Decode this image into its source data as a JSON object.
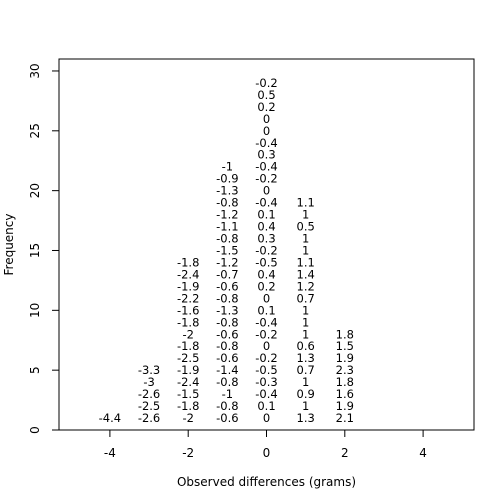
{
  "chart_data": {
    "type": "scatter",
    "subtype": "stacked-value-dotplot",
    "title": "",
    "xlabel": "Observed differences (grams)",
    "ylabel": "Frequency",
    "xlim": [
      -5.3,
      5.3
    ],
    "ylim": [
      0,
      31
    ],
    "x_ticks": [
      "-4",
      "-2",
      "0",
      "2",
      "4"
    ],
    "y_ticks": [
      "0",
      "5",
      "10",
      "15",
      "20",
      "25",
      "30"
    ],
    "grid": false,
    "legend": "none",
    "columns": [
      {
        "x": -4,
        "values": [
          "-4.4"
        ]
      },
      {
        "x": -3,
        "values": [
          "-2.6",
          "-2.5",
          "-2.6",
          "-3",
          "-3.3"
        ]
      },
      {
        "x": -2,
        "values": [
          "-2",
          "-1.8",
          "-1.5",
          "-2.4",
          "-1.9",
          "-2.5",
          "-1.8",
          "-2",
          "-1.8",
          "-1.6",
          "-2.2",
          "-1.9",
          "-2.4",
          "-1.8"
        ]
      },
      {
        "x": -1,
        "values": [
          "-0.6",
          "-0.8",
          "-1",
          "-0.8",
          "-1.4",
          "-0.6",
          "-0.8",
          "-0.6",
          "-0.8",
          "-1.3",
          "-0.8",
          "-0.6",
          "-0.7",
          "-1.2",
          "-1.5",
          "-0.8",
          "-1.1",
          "-1.2",
          "-0.8",
          "-1.3",
          "-0.9",
          "-1"
        ]
      },
      {
        "x": 0,
        "values": [
          "0",
          "0.1",
          "-0.4",
          "-0.3",
          "-0.5",
          "-0.2",
          "0",
          "-0.2",
          "-0.4",
          "0.1",
          "0",
          "0.2",
          "0.4",
          "-0.5",
          "-0.2",
          "0.3",
          "0.4",
          "0.1",
          "-0.4",
          "0",
          "-0.2",
          "-0.4",
          "0.3",
          "-0.4",
          "0",
          "0",
          "0.2",
          "0.5",
          "-0.2"
        ]
      },
      {
        "x": 1,
        "values": [
          "1.3",
          "1",
          "0.9",
          "1",
          "0.7",
          "1.3",
          "0.6",
          "1",
          "1",
          "1",
          "0.7",
          "1.2",
          "1.4",
          "1.1",
          "1",
          "1",
          "0.5",
          "1",
          "1.1"
        ]
      },
      {
        "x": 2,
        "values": [
          "2.1",
          "1.9",
          "1.6",
          "1.8",
          "2.3",
          "1.9",
          "1.5",
          "1.8"
        ]
      }
    ]
  }
}
